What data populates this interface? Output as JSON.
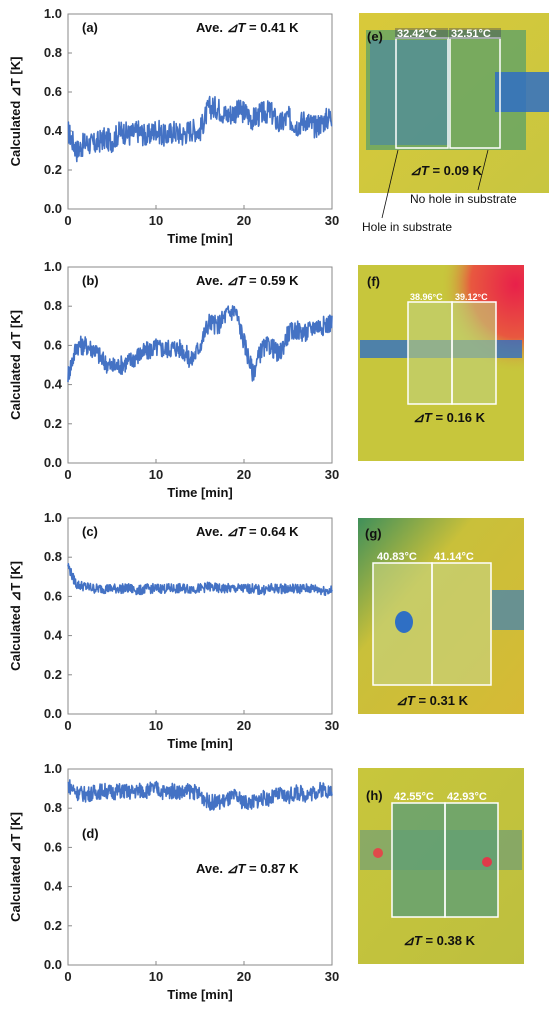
{
  "chart_data": [
    {
      "type": "line",
      "panel_label": "(a)",
      "annotation": {
        "prefix": "Ave. ",
        "symbol": "⊿T",
        "suffix": " = 0.41 K"
      },
      "xlabel": "Time  [min]",
      "ylabel": "Calculated ⊿T [K]",
      "xlim": [
        0,
        30
      ],
      "ylim": [
        0,
        1.0
      ],
      "xticks": [
        "0",
        "10",
        "20",
        "30"
      ],
      "yticks": [
        "0.0",
        "0.2",
        "0.4",
        "0.6",
        "0.8",
        "1.0"
      ],
      "series": [
        {
          "color": "#4472c4",
          "x": [
            0,
            1,
            2,
            3,
            4,
            5,
            6,
            7,
            8,
            9,
            10,
            11,
            12,
            13,
            14,
            15,
            16,
            17,
            18,
            19,
            20,
            21,
            22,
            23,
            24,
            25,
            26,
            27,
            28,
            29,
            30
          ],
          "y": [
            0.4,
            0.3,
            0.34,
            0.33,
            0.36,
            0.35,
            0.4,
            0.38,
            0.4,
            0.37,
            0.41,
            0.37,
            0.4,
            0.38,
            0.41,
            0.4,
            0.52,
            0.52,
            0.48,
            0.5,
            0.5,
            0.46,
            0.49,
            0.5,
            0.43,
            0.47,
            0.43,
            0.46,
            0.42,
            0.45,
            0.48
          ],
          "noise": 0.06
        }
      ]
    },
    {
      "type": "line",
      "panel_label": "(b)",
      "annotation": {
        "prefix": "Ave. ",
        "symbol": "⊿T",
        "suffix": " = 0.59 K"
      },
      "xlabel": "Time  [min]",
      "ylabel": "Calculated ⊿T [K]",
      "xlim": [
        0,
        30
      ],
      "ylim": [
        0,
        1.0
      ],
      "xticks": [
        "0",
        "10",
        "20",
        "30"
      ],
      "yticks": [
        "0.0",
        "0.2",
        "0.4",
        "0.6",
        "0.8",
        "1.0"
      ],
      "series": [
        {
          "color": "#4472c4",
          "x": [
            0,
            1,
            2,
            3,
            4,
            5,
            6,
            7,
            8,
            9,
            10,
            11,
            12,
            13,
            14,
            15,
            16,
            17,
            18,
            19,
            20,
            21,
            22,
            23,
            24,
            25,
            26,
            27,
            28,
            29,
            30
          ],
          "y": [
            0.45,
            0.6,
            0.6,
            0.58,
            0.52,
            0.49,
            0.5,
            0.52,
            0.55,
            0.57,
            0.59,
            0.58,
            0.59,
            0.58,
            0.52,
            0.6,
            0.72,
            0.7,
            0.76,
            0.78,
            0.62,
            0.46,
            0.58,
            0.6,
            0.55,
            0.66,
            0.68,
            0.66,
            0.7,
            0.7,
            0.72
          ],
          "noise": 0.05
        }
      ]
    },
    {
      "type": "line",
      "panel_label": "(c)",
      "annotation": {
        "prefix": "Ave. ",
        "symbol": "⊿T",
        "suffix": " = 0.64 K"
      },
      "xlabel": "Time  [min]",
      "ylabel": "Calculated ⊿T [K]",
      "xlim": [
        0,
        30
      ],
      "ylim": [
        0,
        1.0
      ],
      "xticks": [
        "0",
        "10",
        "20",
        "30"
      ],
      "yticks": [
        "0.0",
        "0.2",
        "0.4",
        "0.6",
        "0.8",
        "1.0"
      ],
      "series": [
        {
          "color": "#4472c4",
          "x": [
            0,
            0.5,
            1,
            2,
            3,
            4,
            5,
            6,
            7,
            8,
            9,
            10,
            11,
            12,
            13,
            14,
            15,
            16,
            17,
            18,
            19,
            20,
            21,
            22,
            23,
            24,
            25,
            26,
            27,
            28,
            29,
            30
          ],
          "y": [
            0.76,
            0.7,
            0.66,
            0.65,
            0.64,
            0.64,
            0.64,
            0.64,
            0.64,
            0.63,
            0.64,
            0.64,
            0.64,
            0.64,
            0.64,
            0.64,
            0.64,
            0.65,
            0.64,
            0.64,
            0.64,
            0.64,
            0.64,
            0.63,
            0.64,
            0.64,
            0.64,
            0.64,
            0.64,
            0.64,
            0.63,
            0.63
          ],
          "noise": 0.025
        }
      ]
    },
    {
      "type": "line",
      "panel_label": "(d)",
      "annotation": {
        "prefix": "Ave. ",
        "symbol": "⊿T",
        "suffix": " = 0.87 K"
      },
      "xlabel": "Time  [min]",
      "ylabel": "Calculated ⊿T [K]",
      "xlim": [
        0,
        30
      ],
      "ylim": [
        0,
        1.0
      ],
      "xticks": [
        "0",
        "10",
        "20",
        "30"
      ],
      "yticks": [
        "0.0",
        "0.2",
        "0.4",
        "0.6",
        "0.8",
        "1.0"
      ],
      "series": [
        {
          "color": "#4472c4",
          "x": [
            0,
            1,
            2,
            3,
            4,
            5,
            6,
            7,
            8,
            9,
            10,
            11,
            12,
            13,
            14,
            15,
            16,
            17,
            18,
            19,
            20,
            21,
            22,
            23,
            24,
            25,
            26,
            27,
            28,
            29,
            30
          ],
          "y": [
            0.92,
            0.88,
            0.87,
            0.88,
            0.89,
            0.88,
            0.89,
            0.88,
            0.89,
            0.89,
            0.9,
            0.88,
            0.89,
            0.88,
            0.89,
            0.87,
            0.83,
            0.83,
            0.84,
            0.86,
            0.83,
            0.83,
            0.85,
            0.85,
            0.87,
            0.86,
            0.88,
            0.87,
            0.88,
            0.9,
            0.88
          ],
          "noise": 0.04
        }
      ]
    }
  ],
  "thermal_images": [
    {
      "panel_label": "(e)",
      "temp_left": "32.42°C",
      "temp_right": "32.51°C",
      "dt": {
        "symbol": "⊿T",
        "suffix": " = 0.09 K"
      },
      "annotations": [
        "No hole in substrate",
        "Hole in substrate"
      ]
    },
    {
      "panel_label": "(f)",
      "temp_left": "38.96°C",
      "temp_right": "39.12°C",
      "dt": {
        "symbol": "⊿T",
        "suffix": " = 0.16 K"
      }
    },
    {
      "panel_label": "(g)",
      "temp_left": "40.83°C",
      "temp_right": "41.14°C",
      "dt": {
        "symbol": "⊿T",
        "suffix": " = 0.31 K"
      }
    },
    {
      "panel_label": "(h)",
      "temp_left": "42.55°C",
      "temp_right": "42.93°C",
      "dt": {
        "symbol": "⊿T",
        "suffix": " = 0.38 K"
      }
    }
  ]
}
